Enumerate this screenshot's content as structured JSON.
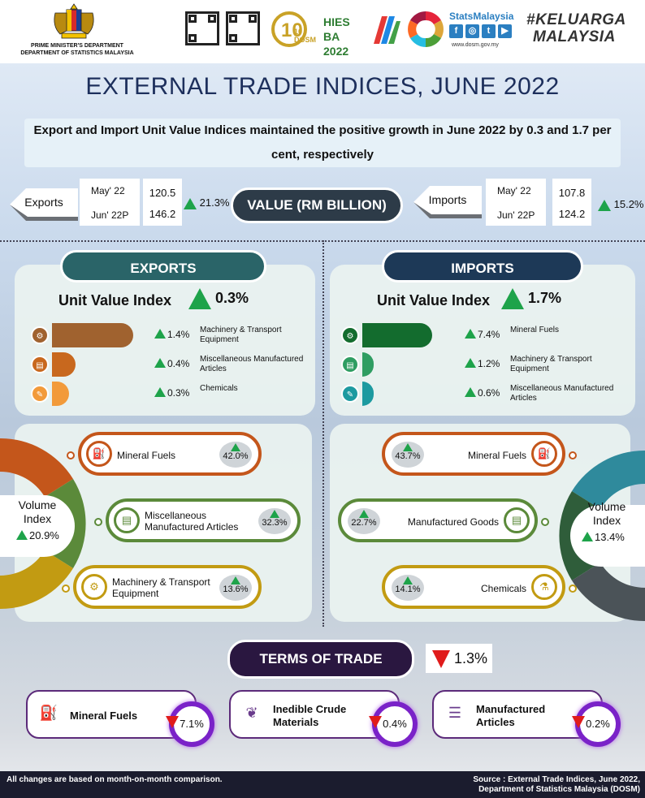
{
  "header": {
    "org_line1": "PRIME MINISTER'S DEPARTMENT",
    "org_line2": "DEPARTMENT OF STATISTICS MALAYSIA",
    "logos": [
      "10 DOSM",
      "HIES BA 2022"
    ],
    "statsmalaysia": "StatsMalaysia",
    "url": "www.dosm.gov.my",
    "campaign_line1": "#KELUARGA",
    "campaign_line2": "MALAYSIA"
  },
  "title": "EXTERNAL TRADE INDICES, JUNE 2022",
  "subtitle": "Export and Import Unit Value Indices maintained the positive growth in June 2022 by 0.3 and 1.7 per cent, respectively",
  "value_section": {
    "label": "VALUE (RM BILLION)",
    "exports": {
      "label": "Exports",
      "month1": "May' 22",
      "month2": "Jun' 22P",
      "value1": "120.5",
      "value2": "146.2",
      "change": "21.3%"
    },
    "imports": {
      "label": "Imports",
      "month1": "May' 22",
      "month2": "Jun' 22P",
      "value1": "107.8",
      "value2": "124.2",
      "change": "15.2%"
    }
  },
  "exports": {
    "heading": "EXPORTS",
    "uvi_label": "Unit Value Index",
    "uvi_change": "0.3%",
    "uvi_items": [
      {
        "name": "Machinery & Transport Equipment",
        "pct": "1.4%",
        "bar_value": 1.4,
        "color": "#a0622f"
      },
      {
        "name": "Miscellaneous Manufactured Articles",
        "pct": "0.4%",
        "bar_value": 0.4,
        "color": "#c8681e"
      },
      {
        "name": "Chemicals",
        "pct": "0.3%",
        "bar_value": 0.3,
        "color": "#f29a3a"
      }
    ],
    "volume_label": "Volume Index",
    "volume_change": "20.9%",
    "volume_items": [
      {
        "name": "Mineral Fuels",
        "pct": "42.0%",
        "color": "#c4561b"
      },
      {
        "name": "Miscellaneous Manufactured Articles",
        "pct": "32.3%",
        "color": "#5b8a3a"
      },
      {
        "name": "Machinery & Transport Equipment",
        "pct": "13.6%",
        "color": "#c29b12"
      }
    ]
  },
  "imports": {
    "heading": "IMPORTS",
    "uvi_label": "Unit Value Index",
    "uvi_change": "1.7%",
    "uvi_items": [
      {
        "name": "Mineral Fuels",
        "pct": "7.4%",
        "bar_value": 7.4,
        "color": "#136c2e"
      },
      {
        "name": "Machinery & Transport Equipment",
        "pct": "1.2%",
        "bar_value": 1.2,
        "color": "#2f9d62"
      },
      {
        "name": "Miscellaneous Manufactured Articles",
        "pct": "0.6%",
        "bar_value": 0.6,
        "color": "#1d9aa0"
      }
    ],
    "volume_label": "Volume Index",
    "volume_change": "13.4%",
    "volume_items": [
      {
        "name": "Mineral Fuels",
        "pct": "43.7%",
        "color": "#c4561b"
      },
      {
        "name": "Manufactured Goods",
        "pct": "22.7%",
        "color": "#5b8a3a"
      },
      {
        "name": "Chemicals",
        "pct": "14.1%",
        "color": "#c29b12"
      }
    ]
  },
  "terms_of_trade": {
    "label": "TERMS OF TRADE",
    "change": "1.3%",
    "items": [
      {
        "name": "Mineral Fuels",
        "pct": "7.1%"
      },
      {
        "name": "Inedible Crude Materials",
        "pct": "0.4%"
      },
      {
        "name": "Manufactured Articles",
        "pct": "0.2%"
      }
    ]
  },
  "footer": {
    "note": "All changes are based on month-on-month comparison.",
    "source_line1": "Source : External Trade Indices, June 2022,",
    "source_line2": "Department of Statistics Malaysia (DOSM)"
  }
}
